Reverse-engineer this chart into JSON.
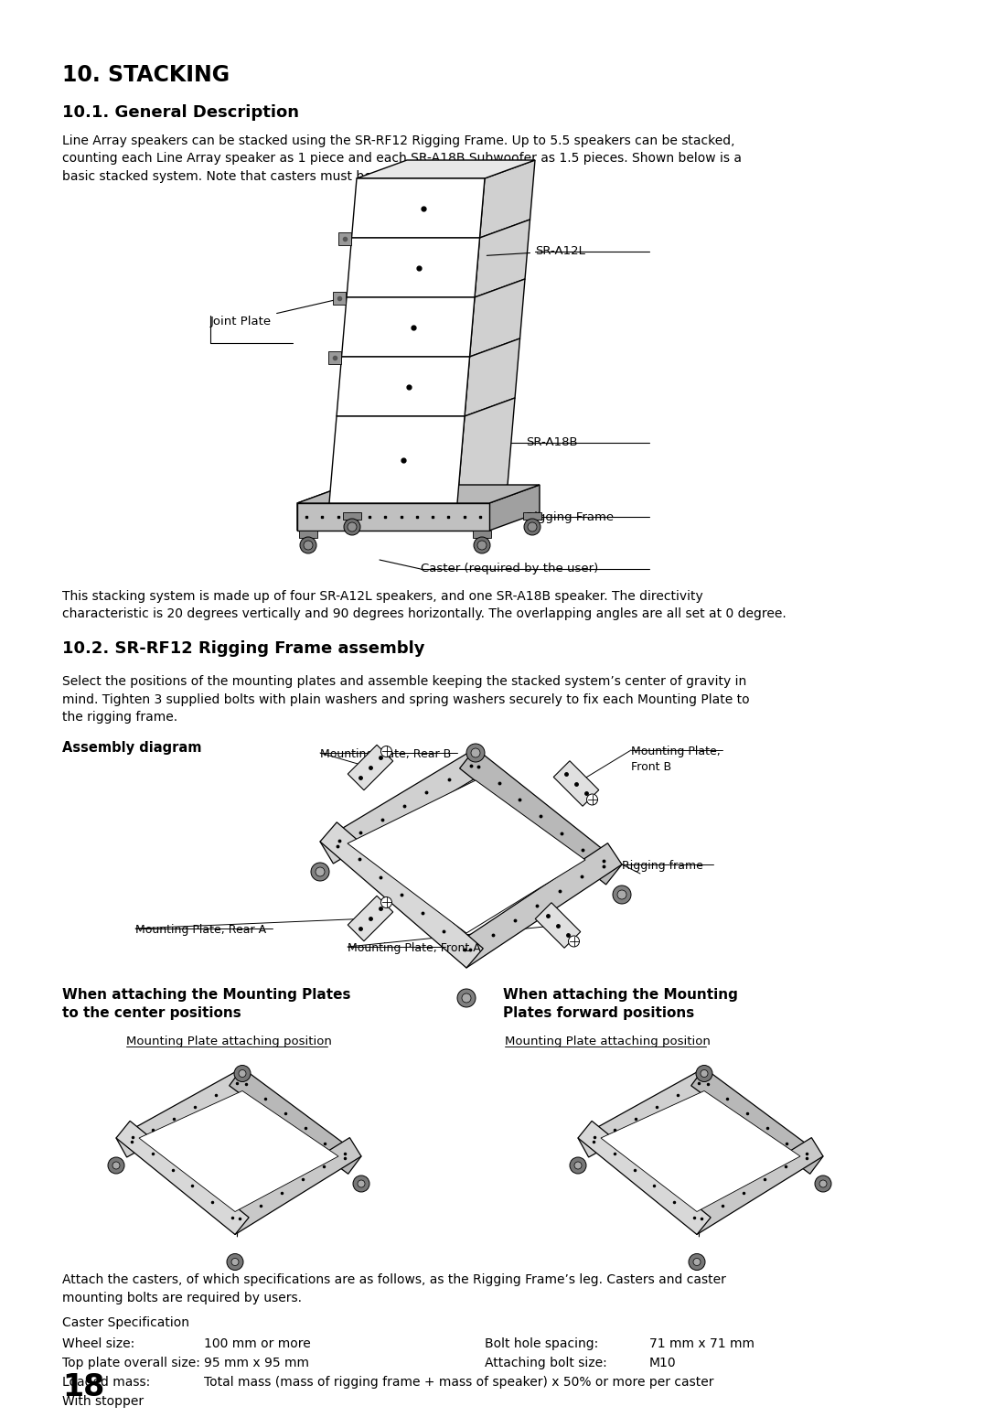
{
  "bg_color": "#ffffff",
  "page_number": "18",
  "title": "10. STACKING",
  "section_1_title": "10.1. General Description",
  "section_1_text": "Line Array speakers can be stacked using the SR-RF12 Rigging Frame. Up to 5.5 speakers can be stacked,\ncounting each Line Array speaker as 1 piece and each SR-A18B Subwoofer as 1.5 pieces. Shown below is a\nbasic stacked system. Note that casters must be prepared separately.",
  "section_2_desc": "This stacking system is made up of four SR-A12L speakers, and one SR-A18B speaker. The directivity\ncharacteristic is 20 degrees vertically and 90 degrees horizontally. The overlapping angles are all set at 0 degree.",
  "section_2_title": "10.2. SR-RF12 Rigging Frame assembly",
  "section_2_intro": "Select the positions of the mounting plates and assemble keeping the stacked system’s center of gravity in\nmind. Tighten 3 supplied bolts with plain washers and spring washers securely to fix each Mounting Plate to\nthe rigging frame.",
  "assembly_label": "Assembly diagram",
  "label_mounting_rear_b": "Mounting Plate, Rear B",
  "label_mounting_front_b": "Mounting Plate,\nFront B",
  "label_rigging_frame": "Rigging frame",
  "label_mounting_rear_a": "Mounting Plate, Rear A",
  "label_mounting_front_a": "Mounting Plate, Front A",
  "label_center_title": "When attaching the Mounting Plates\nto the center positions",
  "label_center_sub": "Mounting Plate attaching position",
  "label_forward_title": "When attaching the Mounting\nPlates forward positions",
  "label_forward_sub": "Mounting Plate attaching position",
  "attach_text": "Attach the casters, of which specifications are as follows, as the Rigging Frame’s leg. Casters and caster\nmounting bolts are required by users.",
  "caster_spec_title": "Caster Specification",
  "wheel_size_label": "Wheel size:",
  "wheel_size_val": "100 mm or more",
  "bolt_hole_label": "Bolt hole spacing:",
  "bolt_hole_val": "  71 mm x 71 mm",
  "top_plate_label": "Top plate overall size:",
  "top_plate_val": "95 mm x 95 mm",
  "attaching_bolt_label": "Attaching bolt size:",
  "attaching_bolt_val": "M10",
  "loaded_mass_label": "Loaded mass:",
  "loaded_mass_val": "Total mass (mass of rigging frame + mass of speaker) x 50% or more per caster",
  "with_stopper": "With stopper",
  "diagram1_label_joint": "Joint Plate",
  "diagram1_label_sr_a12l": "SR-A12L",
  "diagram1_label_sr_a18b": "SR-A18B",
  "diagram1_label_rigging": "Rigging Frame",
  "diagram1_label_caster": "Caster (required by the user)"
}
